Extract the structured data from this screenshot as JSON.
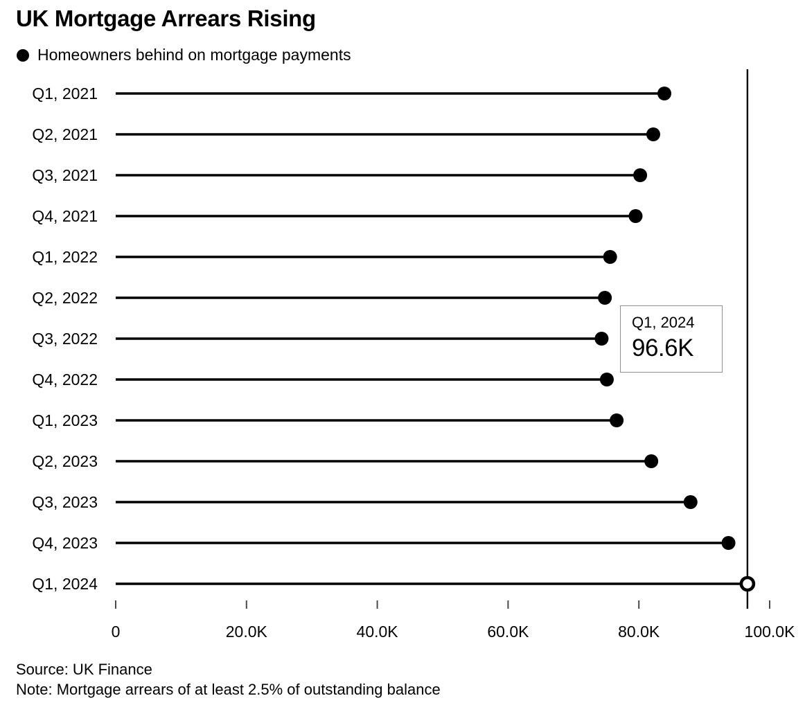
{
  "title": "UK Mortgage Arrears Rising",
  "legend": {
    "label": "Homeowners behind on mortgage payments"
  },
  "annotation": {
    "line1": "Q1, 2024",
    "line2": "96.6K"
  },
  "source": "Source: UK Finance",
  "note": "Note: Mortgage arrears of at least 2.5% of outstanding balance",
  "colors": {
    "series": "#000000",
    "tick": "#4a4a4a",
    "rule": "#000000",
    "annotation_border": "#8f8f8f",
    "background": "#ffffff"
  },
  "chart_data": {
    "type": "bar",
    "variant": "horizontal-lollipop",
    "title": "UK Mortgage Arrears Rising",
    "subtitle": "Homeowners behind on mortgage payments",
    "categories": [
      "Q1, 2021",
      "Q2, 2021",
      "Q3, 2021",
      "Q4, 2021",
      "Q1, 2022",
      "Q2, 2022",
      "Q3, 2022",
      "Q4, 2022",
      "Q1, 2023",
      "Q2, 2023",
      "Q3, 2023",
      "Q4, 2023",
      "Q1, 2024"
    ],
    "values": [
      83900,
      82200,
      80200,
      79500,
      75600,
      74800,
      74300,
      75100,
      76600,
      81900,
      87900,
      93700,
      96600
    ],
    "xlabel": "",
    "ylabel": "",
    "xlim": [
      0,
      100000
    ],
    "x_ticks": [
      0,
      20000,
      40000,
      60000,
      80000,
      100000
    ],
    "x_tick_labels": [
      "0",
      "20.0K",
      "40.0K",
      "60.0K",
      "80.0K",
      "100.0K"
    ],
    "grid": false,
    "legend_position": "top-left",
    "highlight": {
      "category": "Q1, 2024",
      "value_label": "96.6K",
      "marker": "open-circle",
      "vertical_rule_at_value": true
    }
  }
}
